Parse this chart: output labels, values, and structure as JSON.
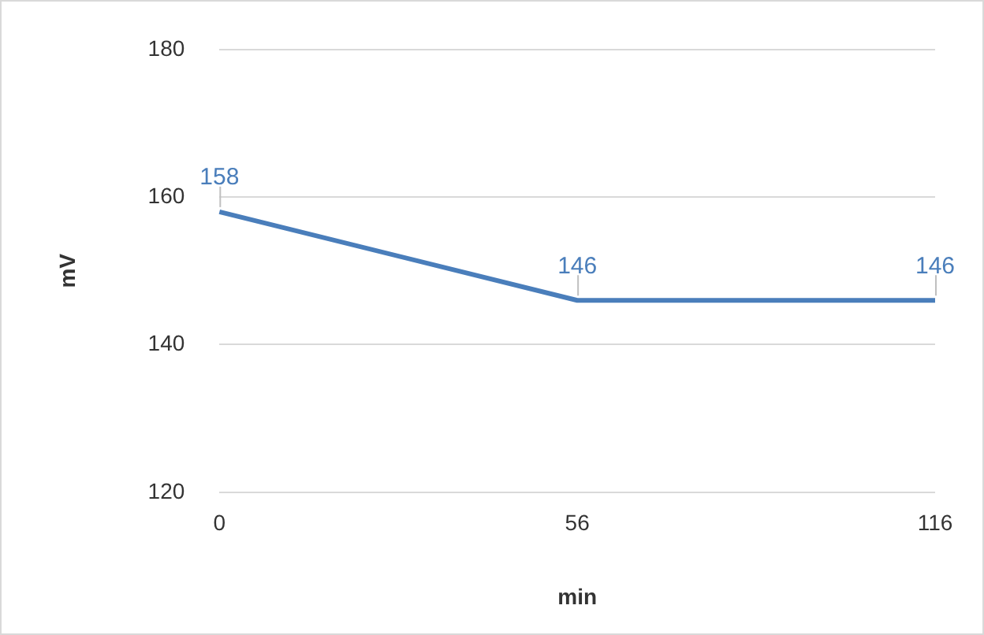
{
  "chart_data": {
    "type": "line",
    "xlabel": "min",
    "ylabel": "mV",
    "categories": [
      "0",
      "56",
      "116"
    ],
    "series": [
      {
        "color": "#4a7ebb",
        "values": [
          158,
          146,
          146
        ]
      }
    ],
    "ylim": [
      120,
      180
    ],
    "yticks": [
      120,
      140,
      160,
      180
    ],
    "grid": "y",
    "legend": false,
    "marker": "none",
    "line_style": "solid",
    "data_labels": true
  }
}
